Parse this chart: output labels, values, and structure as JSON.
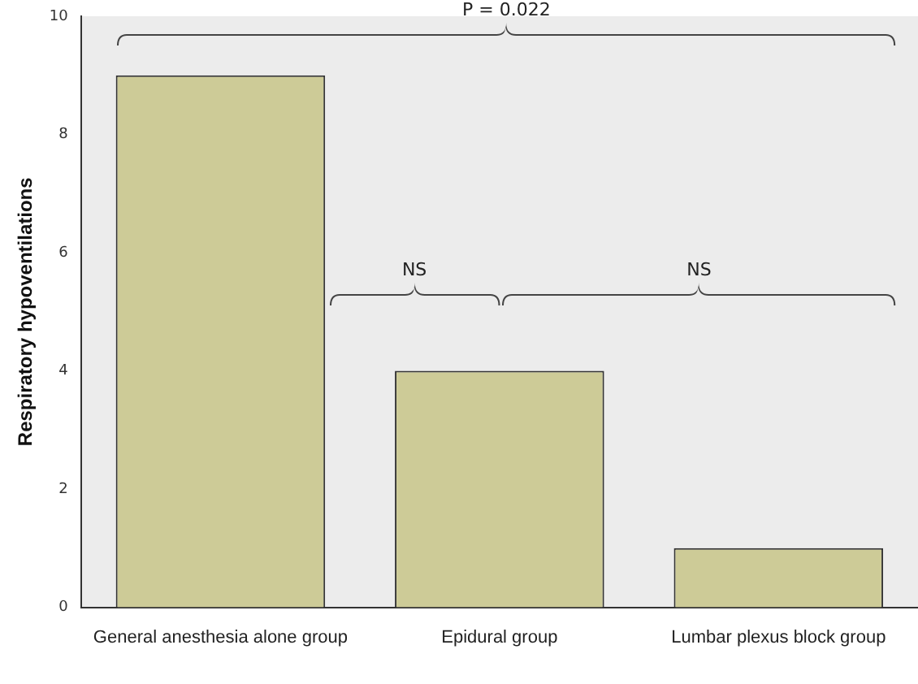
{
  "chart_data": {
    "type": "bar",
    "ylabel": "Respiratory hypoventilations",
    "categories": [
      "General anesthesia alone group",
      "Epidural group",
      "Lumbar plexus block group"
    ],
    "values": [
      9,
      4,
      1
    ],
    "color": "#cdcb97",
    "ylim": [
      0,
      10
    ],
    "yticks": [
      0,
      2,
      4,
      6,
      8,
      10
    ],
    "grid": false,
    "legend": false,
    "annotations": [
      "P = 0.022",
      "NS",
      "NS"
    ]
  }
}
